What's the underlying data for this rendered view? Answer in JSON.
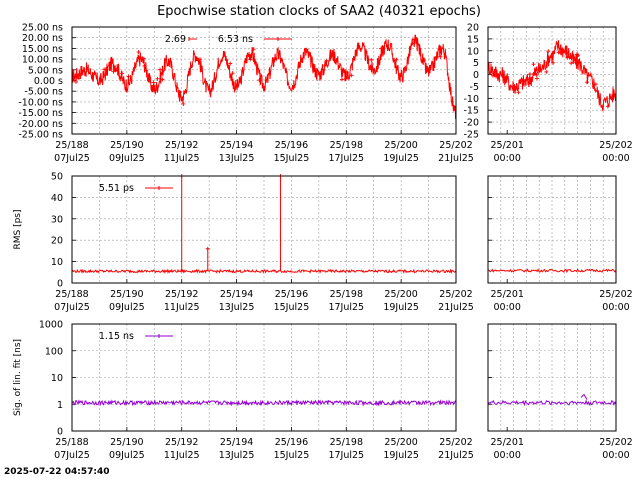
{
  "title": "Epochwise station clocks of SAA2 (40321 epochs)",
  "timestamp": "2025-07-22 04:57:40",
  "chart_data": [
    {
      "type": "line",
      "id": "clock",
      "ylabel": "",
      "xlim": [
        0,
        14
      ],
      "ylim": [
        -25,
        25
      ],
      "yticks": [
        -25,
        -20,
        -15,
        -10,
        -5,
        0,
        5,
        10,
        15,
        20,
        25
      ],
      "ytick_labels": [
        "-25.00 ns",
        "-20.00 ns",
        "-15.00 ns",
        "-10.00 ns",
        "-5.00 ns",
        "0.00  s",
        "5.00 ns",
        "10.00 ns",
        "15.00 ns",
        "20.00 ns",
        "25.00 ns"
      ],
      "x_ticks": [
        {
          "x": 0,
          "l1": "25/188",
          "l2": "07Jul25"
        },
        {
          "x": 2,
          "l1": "25/190",
          "l2": "09Jul25"
        },
        {
          "x": 4,
          "l1": "25/192",
          "l2": "11Jul25"
        },
        {
          "x": 6,
          "l1": "25/194",
          "l2": "13Jul25"
        },
        {
          "x": 8,
          "l1": "25/196",
          "l2": "15Jul25"
        },
        {
          "x": 10,
          "l1": "25/198",
          "l2": "17Jul25"
        },
        {
          "x": 12,
          "l1": "25/200",
          "l2": "19Jul25"
        },
        {
          "x": 14,
          "l1": "25/202",
          "l2": "21Jul25"
        }
      ],
      "legend": [
        {
          "label": "2.69",
          "color": "#ff0000"
        },
        {
          "label": "6.53 ns",
          "color": "#ff0000"
        }
      ],
      "color": "#ff0000",
      "series": [
        {
          "x": [
            0.0,
            0.5,
            1.0,
            1.5,
            2.0,
            2.5,
            3.0,
            3.5,
            4.0,
            4.5,
            5.0,
            5.5,
            6.0,
            6.5,
            7.0,
            7.5,
            8.0,
            8.5,
            9.0,
            9.5,
            10.0,
            10.5,
            11.0,
            11.5,
            12.0,
            12.5,
            13.0,
            13.5,
            14.0
          ],
          "y": [
            2,
            5,
            0,
            8,
            -2,
            10,
            -4,
            9,
            -8,
            12,
            -5,
            12,
            -3,
            13,
            -2,
            12,
            -2,
            13,
            3,
            12,
            2,
            16,
            5,
            17,
            2,
            18,
            4,
            15,
            -15
          ]
        }
      ]
    },
    {
      "type": "line",
      "id": "clock-zoom",
      "ylabel": "",
      "xlim": [
        0,
        1
      ],
      "ylim": [
        -25,
        20
      ],
      "yticks": [
        -25,
        -20,
        -15,
        -10,
        -5,
        0,
        5,
        10,
        15,
        20
      ],
      "ytick_labels": [
        "-25",
        "-20",
        "-15",
        "-10",
        "-5",
        "0",
        "5",
        "10",
        "15",
        "20"
      ],
      "x_ticks": [
        {
          "x": 0.15,
          "l1": "25/201",
          "l2": "00:00"
        },
        {
          "x": 1.0,
          "l1": "25/202",
          "l2": "00:00"
        }
      ],
      "legend": [],
      "color": "#ff0000",
      "series": [
        {
          "x": [
            0.0,
            0.1,
            0.2,
            0.3,
            0.4,
            0.5,
            0.55,
            0.6,
            0.7,
            0.8,
            0.9,
            1.0
          ],
          "y": [
            3,
            0,
            -5,
            -3,
            2,
            8,
            12,
            10,
            5,
            -2,
            -12,
            -8
          ]
        }
      ]
    },
    {
      "type": "line",
      "id": "rms",
      "ylabel": "RMS [ps]",
      "xlim": [
        0,
        14
      ],
      "ylim": [
        0,
        50
      ],
      "yticks": [
        0,
        10,
        20,
        30,
        40,
        50
      ],
      "ytick_labels": [
        "0",
        "10",
        "20",
        "30",
        "40",
        "50"
      ],
      "x_ticks": [
        {
          "x": 0,
          "l1": "25/188",
          "l2": "07Jul25"
        },
        {
          "x": 2,
          "l1": "25/190",
          "l2": "09Jul25"
        },
        {
          "x": 4,
          "l1": "25/192",
          "l2": "11Jul25"
        },
        {
          "x": 6,
          "l1": "25/194",
          "l2": "13Jul25"
        },
        {
          "x": 8,
          "l1": "25/196",
          "l2": "15Jul25"
        },
        {
          "x": 10,
          "l1": "25/198",
          "l2": "17Jul25"
        },
        {
          "x": 12,
          "l1": "25/200",
          "l2": "19Jul25"
        },
        {
          "x": 14,
          "l1": "25/202",
          "l2": "21Jul25"
        }
      ],
      "legend": [
        {
          "label": "5.51 ps",
          "color": "#ff0000"
        }
      ],
      "color": "#ff0000",
      "baseline": 5.5,
      "spikes": [
        {
          "x": 4.0,
          "y": 50
        },
        {
          "x": 4.95,
          "y": 16
        },
        {
          "x": 7.6,
          "y": 50
        }
      ]
    },
    {
      "type": "line",
      "id": "rms-zoom",
      "ylabel": "",
      "xlim": [
        0,
        1
      ],
      "ylim": [
        0,
        50
      ],
      "yticks": [
        0,
        10,
        20,
        30,
        40,
        50
      ],
      "ytick_labels": [
        "",
        "",
        "",
        "",
        "",
        ""
      ],
      "x_ticks": [
        {
          "x": 0.15,
          "l1": "25/201",
          "l2": "00:00"
        },
        {
          "x": 1.0,
          "l1": "25/202",
          "l2": "00:00"
        }
      ],
      "legend": [],
      "color": "#ff0000",
      "baseline": 5.8,
      "spikes": []
    },
    {
      "type": "line",
      "id": "sig",
      "ylabel": "Sig. of lin. fit [ns]",
      "yscale": "log",
      "xlim": [
        0,
        14
      ],
      "ylim": [
        0.1,
        1000
      ],
      "yticks": [
        0.1,
        1,
        10,
        100,
        1000
      ],
      "ytick_labels": [
        "0",
        "1",
        "10",
        "100",
        "1000"
      ],
      "x_ticks": [
        {
          "x": 0,
          "l1": "25/188",
          "l2": "07Jul25"
        },
        {
          "x": 2,
          "l1": "25/190",
          "l2": "09Jul25"
        },
        {
          "x": 4,
          "l1": "25/192",
          "l2": "11Jul25"
        },
        {
          "x": 6,
          "l1": "25/194",
          "l2": "13Jul25"
        },
        {
          "x": 8,
          "l1": "25/196",
          "l2": "15Jul25"
        },
        {
          "x": 10,
          "l1": "25/198",
          "l2": "17Jul25"
        },
        {
          "x": 12,
          "l1": "25/200",
          "l2": "19Jul25"
        },
        {
          "x": 14,
          "l1": "25/202",
          "l2": "21Jul25"
        }
      ],
      "legend": [
        {
          "label": "1.15 ns",
          "color": "#9400d3"
        }
      ],
      "color": "#9400d3",
      "baseline": 1.15
    },
    {
      "type": "line",
      "id": "sig-zoom",
      "ylabel": "",
      "yscale": "log",
      "xlim": [
        0,
        1
      ],
      "ylim": [
        0.1,
        1000
      ],
      "yticks": [
        0.1,
        1,
        10,
        100,
        1000
      ],
      "ytick_labels": [
        "",
        "",
        "",
        "",
        ""
      ],
      "x_ticks": [
        {
          "x": 0.15,
          "l1": "25/201",
          "l2": "00:00"
        },
        {
          "x": 1.0,
          "l1": "25/202",
          "l2": "00:00"
        }
      ],
      "legend": [],
      "color": "#9400d3",
      "baseline": 1.15
    }
  ]
}
